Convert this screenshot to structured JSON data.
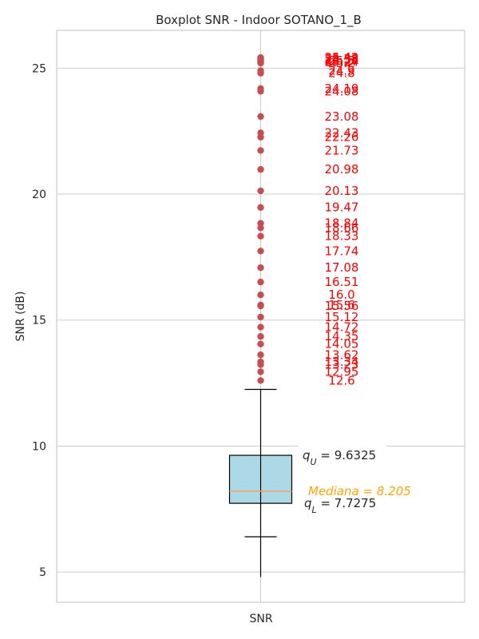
{
  "chart_data": {
    "type": "box",
    "title": "Boxplot SNR - Indoor SOTANO_1_B",
    "ylabel": "SNR (dB)",
    "xlabel": "",
    "categories": [
      "SNR"
    ],
    "ylim": [
      3.8,
      26.5
    ],
    "yticks": [
      5,
      10,
      15,
      20,
      25
    ],
    "grid": true,
    "box": {
      "whisker_low": 6.4,
      "q1": 7.7275,
      "median": 8.205,
      "q3": 9.6325,
      "whisker_high": 12.25,
      "min": 4.8,
      "fill": "#add8e6",
      "median_color": "#f4a460"
    },
    "outliers": [
      12.6,
      12.95,
      13.23,
      13.34,
      13.62,
      14.05,
      14.35,
      14.72,
      15.12,
      15.56,
      15.6,
      16.0,
      16.51,
      17.08,
      17.74,
      18.33,
      18.66,
      18.84,
      19.47,
      20.13,
      20.98,
      21.73,
      22.26,
      22.43,
      23.08,
      24.08,
      24.19,
      24.8,
      24.9,
      25.2,
      25.24,
      25.27,
      25.3,
      25.33,
      25.38,
      25.42
    ],
    "outlier_labels": [
      "12.6",
      "12.95",
      "13.23",
      "13.34",
      "13.62",
      "14.05",
      "14.35",
      "14.72",
      "15.12",
      "15.56",
      "15.6",
      "16.0",
      "16.51",
      "17.08",
      "17.74",
      "18.33",
      "18.66",
      "18.84",
      "19.47",
      "20.13",
      "20.98",
      "21.73",
      "22.26",
      "22.43",
      "23.08",
      "24.08",
      "24.19",
      "24.8",
      "24.9",
      "25.2",
      "25.24",
      "25.27",
      "25.3",
      "25.33",
      "25.38",
      "25.42"
    ],
    "outlier_color": "#c44e52",
    "outlier_label_color": "#ff0000",
    "annotations": {
      "q3_label": "$q_U = 9.6325$",
      "median_label": "$Mediana = 8.205$",
      "q1_label": "$q_L = 7.7275$"
    }
  }
}
